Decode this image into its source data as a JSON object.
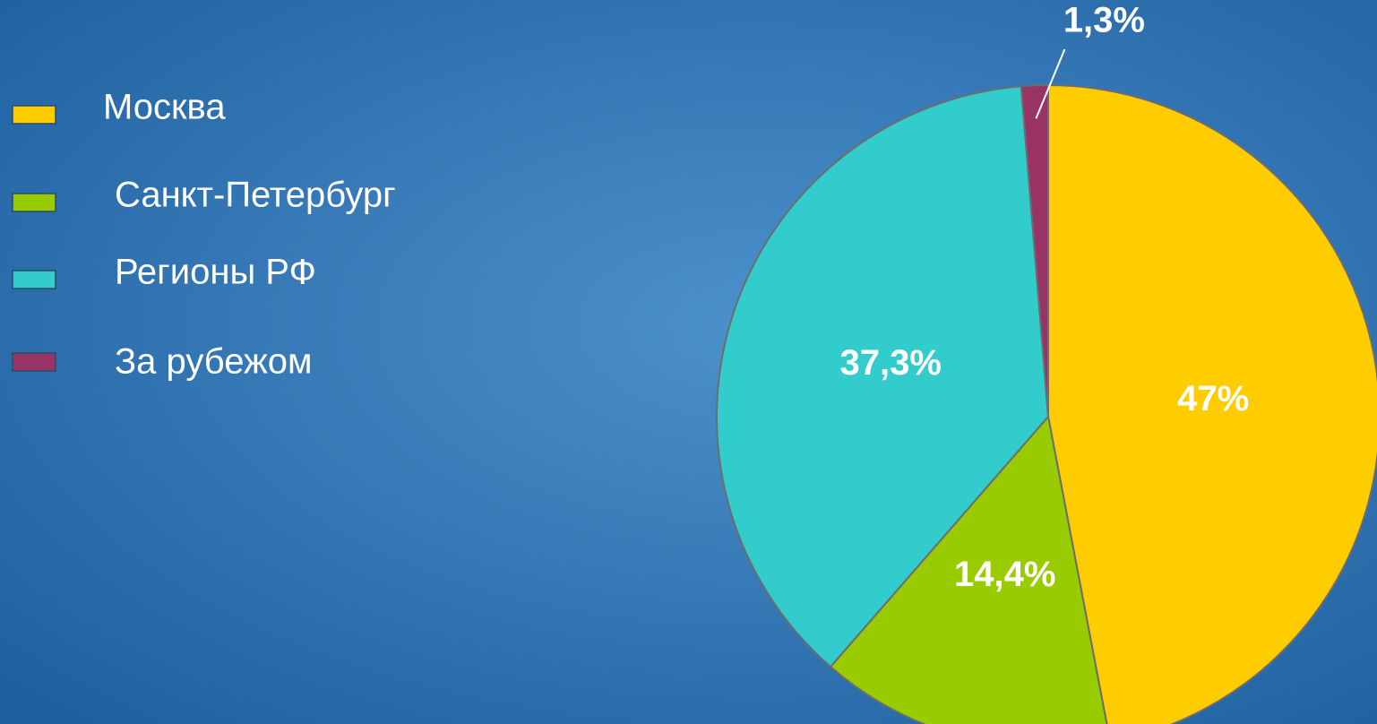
{
  "chart_data": {
    "type": "pie",
    "categories": [
      "Москва",
      "Санкт-Петербург",
      "Регионы РФ",
      "За рубежом"
    ],
    "values": [
      47,
      14.4,
      37.3,
      1.3
    ],
    "value_labels": [
      "47%",
      "14,4%",
      "37,3%",
      "1,3%"
    ],
    "colors": [
      "#ffcc00",
      "#99cc00",
      "#33cccc",
      "#993366"
    ],
    "legend": "left"
  }
}
